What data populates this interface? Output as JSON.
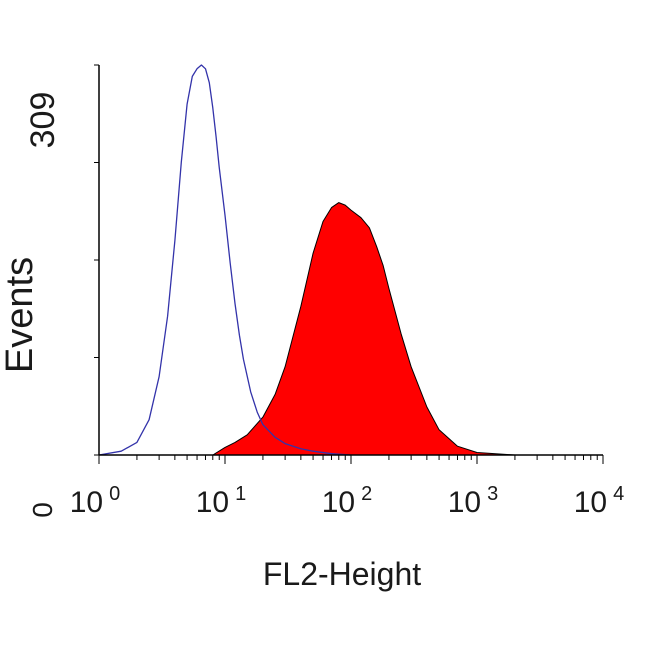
{
  "chart_data": {
    "type": "area",
    "xlabel": "FL2-Height",
    "ylabel": "Events",
    "x_scale": "log",
    "xlim": [
      1,
      10000
    ],
    "ylim": [
      0,
      309
    ],
    "y_tick_labels": [
      "0",
      "309"
    ],
    "x_tick_labels": [
      {
        "base": "10",
        "exp": "0"
      },
      {
        "base": "10",
        "exp": "1"
      },
      {
        "base": "10",
        "exp": "2"
      },
      {
        "base": "10",
        "exp": "3"
      },
      {
        "base": "10",
        "exp": "4"
      }
    ],
    "grid": false,
    "series": [
      {
        "style": "outline",
        "color": "#3333aa",
        "x": [
          1,
          1.5,
          2,
          2.5,
          3,
          3.5,
          4,
          4.5,
          5,
          5.5,
          6,
          6.5,
          7,
          7.5,
          8,
          8.5,
          9,
          10,
          11,
          12,
          13,
          14,
          16,
          18,
          20,
          25,
          30,
          40,
          50,
          70,
          100
        ],
        "y": [
          0,
          3,
          10,
          28,
          62,
          110,
          170,
          232,
          278,
          300,
          306,
          309,
          306,
          295,
          275,
          252,
          228,
          190,
          152,
          120,
          95,
          76,
          50,
          34,
          24,
          14,
          9,
          5,
          3,
          1,
          0
        ]
      },
      {
        "style": "filled",
        "color": "#ff0000",
        "x": [
          8,
          10,
          12,
          15,
          20,
          25,
          30,
          40,
          50,
          60,
          70,
          80,
          90,
          100,
          120,
          140,
          160,
          180,
          200,
          250,
          300,
          400,
          500,
          700,
          1000,
          2000
        ],
        "y": [
          0,
          6,
          10,
          16,
          30,
          48,
          70,
          118,
          160,
          185,
          196,
          200,
          198,
          194,
          188,
          180,
          165,
          150,
          132,
          96,
          70,
          38,
          20,
          7,
          2,
          0
        ]
      }
    ]
  }
}
